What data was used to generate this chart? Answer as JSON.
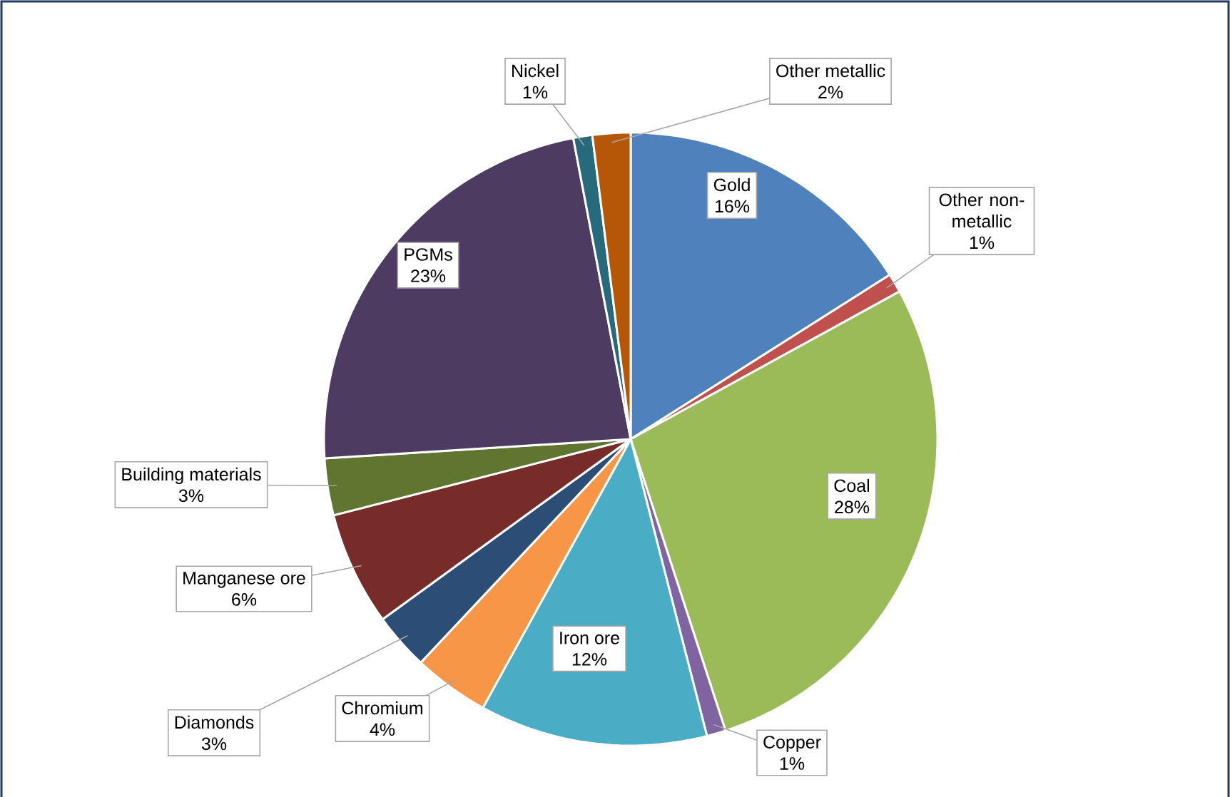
{
  "chart_data": {
    "type": "pie",
    "categories": [
      "Gold",
      "Other non-metallic",
      "Coal",
      "Copper",
      "Iron ore",
      "Chromium",
      "Diamonds",
      "Manganese ore",
      "Building materials",
      "PGMs",
      "Nickel",
      "Other metallic"
    ],
    "values": [
      16,
      1,
      28,
      1,
      12,
      4,
      3,
      6,
      3,
      23,
      1,
      2
    ],
    "value_labels": [
      "16%",
      "1%",
      "28%",
      "1%",
      "12%",
      "4%",
      "3%",
      "6%",
      "3%",
      "23%",
      "1%",
      "2%"
    ],
    "colors": [
      "#4f81bd",
      "#c0504d",
      "#9bbb59",
      "#8064a2",
      "#4bacc6",
      "#f79646",
      "#2c4d75",
      "#772c2a",
      "#5f7530",
      "#4d3b62",
      "#276a7c",
      "#b65708"
    ]
  }
}
